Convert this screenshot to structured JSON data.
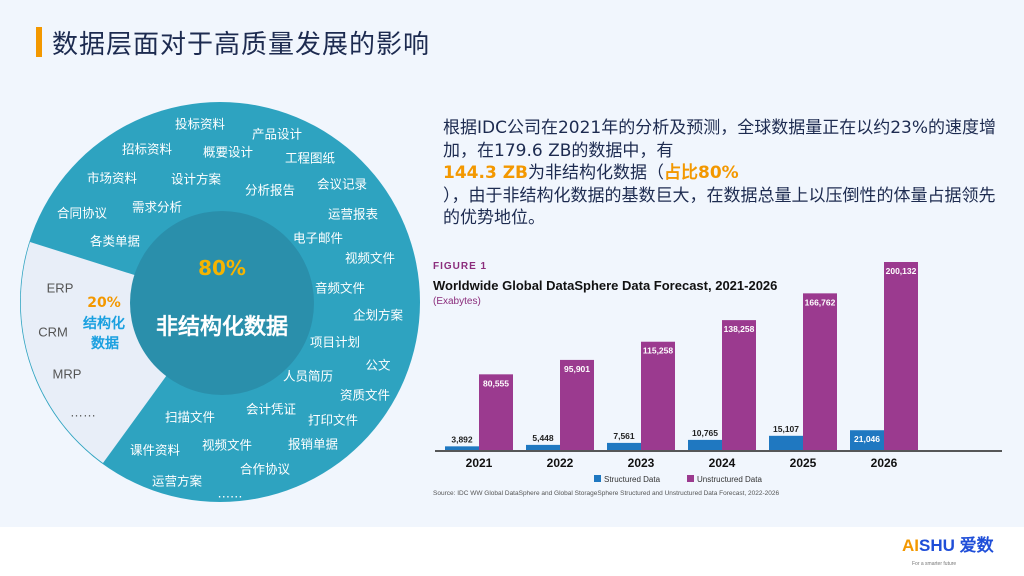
{
  "title": "数据层面对于高质量发展的影响",
  "donut": {
    "center_pct": "80%",
    "center_label": "非结构化数据",
    "side_pct": "20%",
    "side_label_1": "结构化",
    "side_label_2": "数据",
    "unstructured_items": [
      "投标资料",
      "产品设计",
      "招标资料",
      "概要设计",
      "工程图纸",
      "市场资料",
      "设计方案",
      "分析报告",
      "会议记录",
      "合同协议",
      "需求分析",
      "运营报表",
      "各类单据",
      "电子邮件",
      "视频文件",
      "音频文件",
      "企划方案",
      "项目计划",
      "公文",
      "人员简历",
      "资质文件",
      "扫描文件",
      "会计凭证",
      "打印文件",
      "课件资料",
      "视频文件",
      "报销单据",
      "合作协议",
      "运营方案",
      "……"
    ],
    "structured_items": [
      "ERP",
      "CRM",
      "MRP",
      "……"
    ],
    "colors": {
      "outer": "#2ea3c0",
      "inner": "#2a8fab",
      "structured": "#e8eef8"
    }
  },
  "paragraph": {
    "p1": "根据IDC公司在2021年的分析及预测，全球数据量正在以约23%的速度增加，在179.6 ZB的数据中，有",
    "h1": "144.3 ZB",
    "p2": "为非结构化数据（",
    "h2": "占比80%",
    "p3": "），由于非结构化数据的基数巨大，在数据总量上以压倒性的体量占据领先的优势地位。"
  },
  "chart_data": {
    "type": "bar",
    "figure_label": "FIGURE 1",
    "title": "Worldwide Global DataSphere Data Forecast, 2021-2026",
    "subtitle": "(Exabytes)",
    "categories": [
      "2021",
      "2022",
      "2023",
      "2024",
      "2025",
      "2026"
    ],
    "series": [
      {
        "name": "Structured Data",
        "color": "#1f78c1",
        "values": [
          3892,
          5448,
          7561,
          10765,
          15107,
          21046
        ],
        "labels": [
          "3,892",
          "5,448",
          "7,561",
          "10,765",
          "15,107",
          "21,046"
        ]
      },
      {
        "name": "Unstructured Data",
        "color": "#9b3a8f",
        "values": [
          80555,
          95901,
          115258,
          138258,
          166762,
          200132
        ],
        "labels": [
          "80,555",
          "95,901",
          "115,258",
          "138,258",
          "166,762",
          "200,132"
        ]
      }
    ],
    "ylim": [
      0,
      200132
    ],
    "legend": "bottom",
    "source": "Source: IDC WW Global DataSphere and Global StorageSphere Structured and Unstructured Data Forecast, 2022-2026"
  },
  "logo": {
    "text_a": "AI",
    "text_b": "SHU 爱数",
    "tagline": "For a smarter future"
  }
}
